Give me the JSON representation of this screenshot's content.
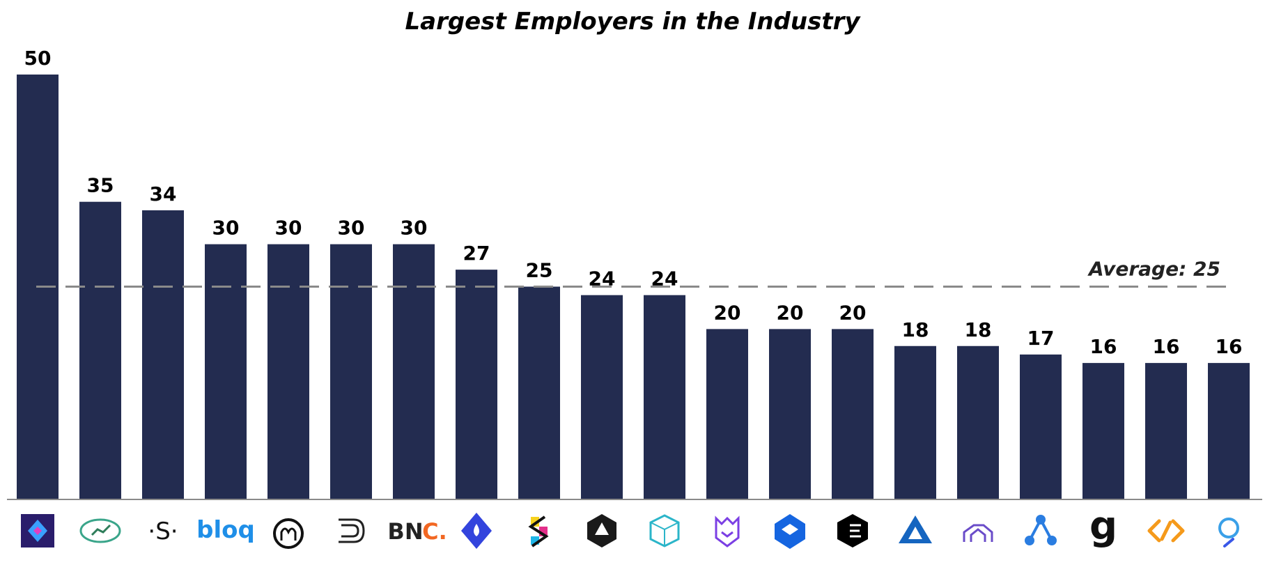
{
  "chart_data": {
    "type": "bar",
    "title": "Largest Employers in the Industry",
    "xlabel": "",
    "ylabel": "",
    "values": [
      50,
      35,
      34,
      30,
      30,
      30,
      30,
      27,
      25,
      24,
      24,
      20,
      20,
      20,
      18,
      18,
      17,
      16,
      16,
      16
    ],
    "ylim": [
      0,
      50
    ],
    "grid": false,
    "legend": "none",
    "bar_color": "#232c50",
    "reference_line": {
      "value": 25,
      "label": "Average: 25",
      "color": "#8a8a8a",
      "style": "dashed"
    },
    "category_logos": [
      {
        "icon": "purple-cube-logo-icon",
        "text": ""
      },
      {
        "icon": "green-chart-circle-logo-icon",
        "text": ""
      },
      {
        "icon": "dot-s-dot-logo-icon",
        "text": "·S·"
      },
      {
        "icon": "bloq-logo-icon",
        "text": "bloq"
      },
      {
        "icon": "circle-m-logo-icon",
        "text": ""
      },
      {
        "icon": "stacked-lines-logo-icon",
        "text": ""
      },
      {
        "icon": "bnc-logo-icon",
        "text": "BNC."
      },
      {
        "icon": "blue-drop-diamond-logo-icon",
        "text": ""
      },
      {
        "icon": "colorful-s-logo-icon",
        "text": ""
      },
      {
        "icon": "dark-polyhedron-logo-icon",
        "text": ""
      },
      {
        "icon": "teal-cube-logo-icon",
        "text": ""
      },
      {
        "icon": "purple-shield-logo-icon",
        "text": ""
      },
      {
        "icon": "blue-box-logo-icon",
        "text": ""
      },
      {
        "icon": "black-e-cube-logo-icon",
        "text": ""
      },
      {
        "icon": "blue-triangle-logo-icon",
        "text": ""
      },
      {
        "icon": "purple-outline-logo-icon",
        "text": ""
      },
      {
        "icon": "blue-nodes-logo-icon",
        "text": ""
      },
      {
        "icon": "g-logo-icon",
        "text": "g"
      },
      {
        "icon": "orange-link-logo-icon",
        "text": ""
      },
      {
        "icon": "blue-o-logo-icon",
        "text": ""
      }
    ]
  }
}
